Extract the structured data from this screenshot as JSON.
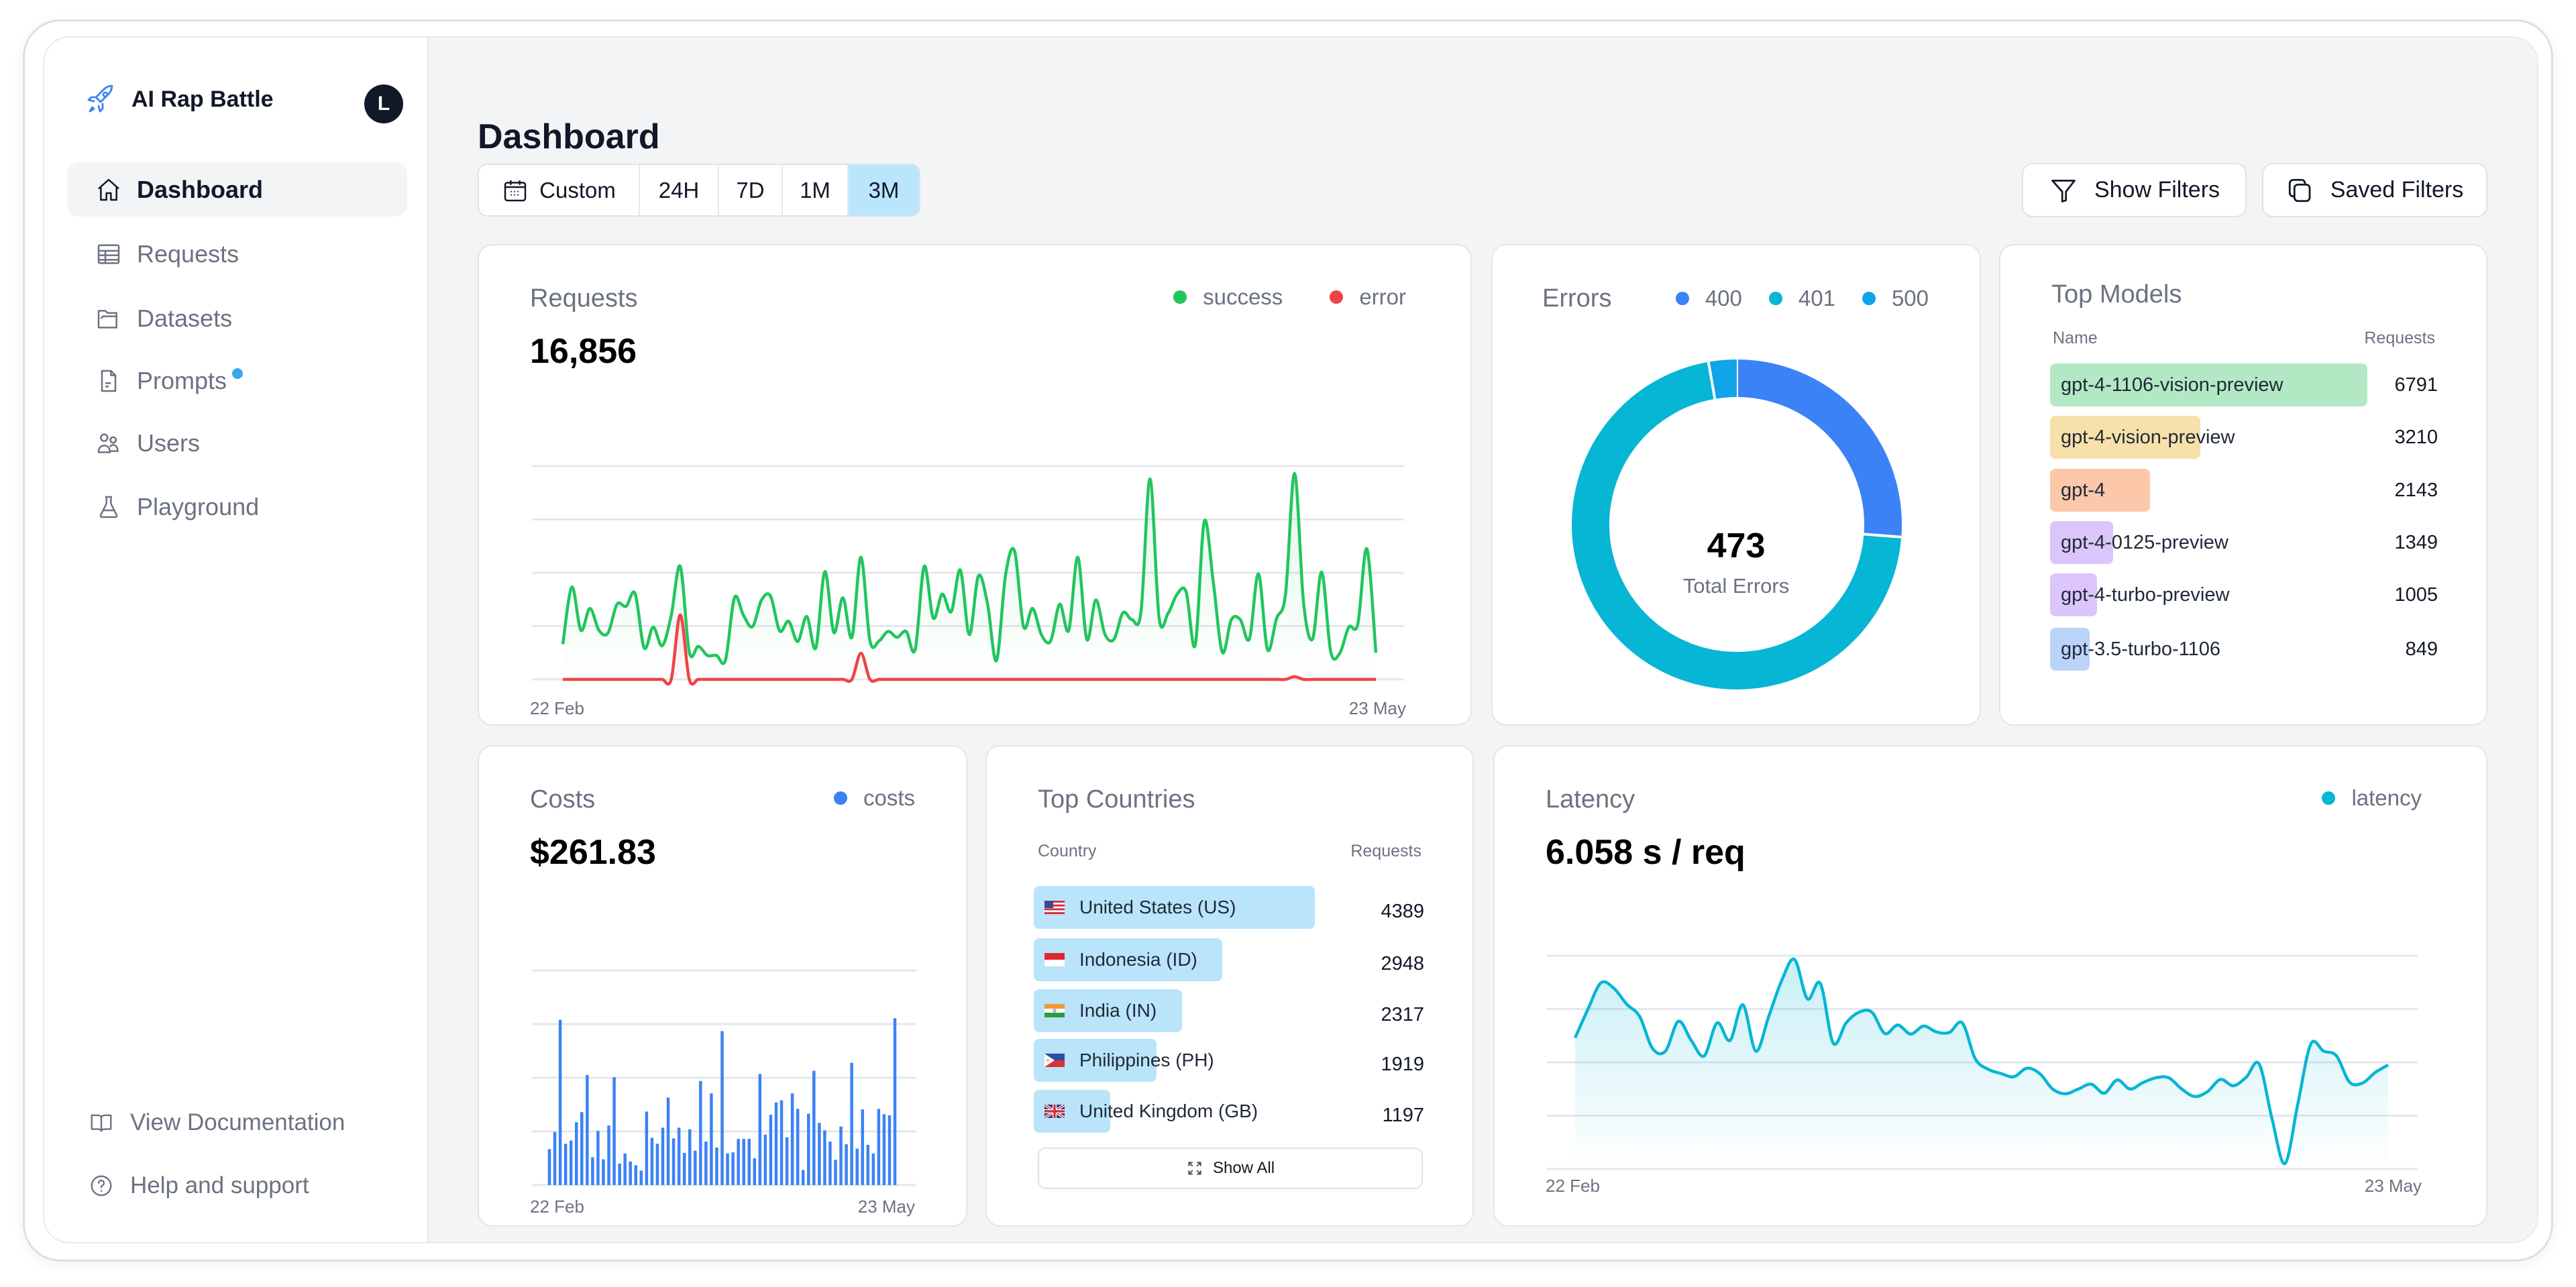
{
  "app": {
    "name": "AI Rap Battle",
    "avatar": "L",
    "logo_icon": "rocket-icon"
  },
  "sidebar": {
    "items": [
      {
        "label": "Dashboard",
        "icon": "home-icon",
        "active": true
      },
      {
        "label": "Requests",
        "icon": "table-icon"
      },
      {
        "label": "Datasets",
        "icon": "folder-icon"
      },
      {
        "label": "Prompts",
        "icon": "document-icon",
        "badge": true
      },
      {
        "label": "Users",
        "icon": "users-icon"
      },
      {
        "label": "Playground",
        "icon": "flask-icon"
      }
    ],
    "footer": [
      {
        "label": "View Documentation",
        "icon": "book-icon"
      },
      {
        "label": "Help and support",
        "icon": "help-circle-icon"
      }
    ]
  },
  "header": {
    "title": "Dashboard",
    "ranges": [
      "Custom",
      "24H",
      "7D",
      "1M",
      "3M"
    ],
    "active_range": "3M",
    "show_filters": "Show Filters",
    "saved_filters": "Saved Filters"
  },
  "colors": {
    "success": "#22c55e",
    "error": "#ef4444",
    "e400": "#3b82f6",
    "e401": "#06b6d4",
    "e500": "#0ea5e9",
    "costs": "#3b82f6",
    "latency": "#06b6d4",
    "country_bar": "#b9e4fa",
    "active_range": "#bae6fd"
  },
  "chart_data": [
    {
      "type": "line",
      "title": "Requests",
      "value": "16,856",
      "x_labels": [
        "22 Feb",
        "23 May"
      ],
      "ylim": [
        0,
        400
      ],
      "grid": true,
      "legend_position": "top-right",
      "series": [
        {
          "name": "success",
          "color": "#22c55e",
          "values": [
            66,
            173,
            92,
            133,
            92,
            87,
            141,
            137,
            161,
            59,
            98,
            63,
            120,
            212,
            51,
            62,
            45,
            45,
            36,
            153,
            120,
            99,
            149,
            156,
            91,
            109,
            71,
            118,
            59,
            202,
            88,
            153,
            79,
            229,
            72,
            72,
            90,
            79,
            90,
            56,
            212,
            115,
            160,
            127,
            205,
            84,
            194,
            143,
            35,
            195,
            241,
            99,
            133,
            83,
            72,
            141,
            92,
            229,
            75,
            149,
            85,
            75,
            125,
            112,
            127,
            376,
            116,
            124,
            160,
            164,
            64,
            296,
            183,
            51,
            112,
            112,
            76,
            198,
            56,
            114,
            160,
            386,
            143,
            76,
            201,
            52,
            49,
            98,
            104,
            245,
            50
          ]
        },
        {
          "name": "error",
          "color": "#ef4444",
          "values": [
            0,
            0,
            0,
            0,
            0,
            0,
            0,
            0,
            0,
            0,
            0,
            0,
            0,
            121,
            0,
            0,
            0,
            0,
            0,
            0,
            0,
            0,
            0,
            0,
            0,
            0,
            0,
            0,
            0,
            0,
            0,
            0,
            0,
            49,
            0,
            0,
            0,
            0,
            0,
            0,
            0,
            0,
            0,
            0,
            0,
            0,
            0,
            0,
            0,
            0,
            0,
            0,
            0,
            0,
            0,
            0,
            0,
            0,
            0,
            0,
            0,
            0,
            0,
            0,
            0,
            0,
            0,
            0,
            0,
            0,
            0,
            0,
            0,
            0,
            0,
            0,
            0,
            0,
            0,
            0,
            0,
            5,
            0,
            0,
            0,
            0,
            0,
            0,
            0,
            0,
            0
          ]
        }
      ]
    },
    {
      "type": "pie",
      "title": "Errors",
      "value": "473",
      "center_label": "Total Errors",
      "legend_position": "top-right",
      "slices": [
        {
          "name": "400",
          "value": 124,
          "color": "#3b82f6"
        },
        {
          "name": "401",
          "value": 336,
          "color": "#06b6d4"
        },
        {
          "name": "500",
          "value": 13,
          "color": "#0ea5e9"
        }
      ]
    },
    {
      "type": "bar",
      "title": "Top Models",
      "col_name": "Name",
      "col_value": "Requests",
      "rows": [
        {
          "name": "gpt-4-1106-vision-preview",
          "value": 6791,
          "color": "#b3e8c4"
        },
        {
          "name": "gpt-4-vision-preview",
          "value": 3210,
          "color": "#f7e0a9"
        },
        {
          "name": "gpt-4",
          "value": 2143,
          "color": "#fcc8a9"
        },
        {
          "name": "gpt-4-0125-preview",
          "value": 1349,
          "color": "#dcc5fa"
        },
        {
          "name": "gpt-4-turbo-preview",
          "value": 1005,
          "color": "#dcc5fa"
        },
        {
          "name": "gpt-3.5-turbo-1106",
          "value": 849,
          "color": "#bcd3f9"
        }
      ]
    },
    {
      "type": "bar",
      "title": "Costs",
      "value": "$261.83",
      "x_labels": [
        "22 Feb",
        "23 May"
      ],
      "ylim": [
        0,
        400
      ],
      "grid": true,
      "legend_position": "top-right",
      "series": [
        {
          "name": "costs",
          "color": "#3b82f6",
          "values": [
            67,
            99,
            308,
            77,
            83,
            117,
            136,
            205,
            52,
            101,
            48,
            111,
            201,
            40,
            59,
            44,
            37,
            27,
            137,
            88,
            77,
            107,
            163,
            87,
            107,
            60,
            104,
            64,
            194,
            81,
            171,
            70,
            287,
            59,
            61,
            86,
            86,
            86,
            50,
            207,
            94,
            131,
            154,
            158,
            89,
            171,
            142,
            28,
            133,
            213,
            116,
            102,
            81,
            47,
            109,
            76,
            228,
            68,
            141,
            75,
            59,
            142,
            132,
            130,
            311
          ]
        }
      ]
    },
    {
      "type": "bar",
      "title": "Top Countries",
      "col_name": "Country",
      "col_value": "Requests",
      "show_all": "Show All",
      "rows": [
        {
          "name": "United States (US)",
          "code": "US",
          "value": 4389
        },
        {
          "name": "Indonesia (ID)",
          "code": "ID",
          "value": 2948
        },
        {
          "name": "India (IN)",
          "code": "IN",
          "value": 2317
        },
        {
          "name": "Philippines (PH)",
          "code": "PH",
          "value": 1919
        },
        {
          "name": "United Kingdom (GB)",
          "code": "GB",
          "value": 1197
        }
      ]
    },
    {
      "type": "area",
      "title": "Latency",
      "value": "6.058 s / req",
      "x_labels": [
        "22 Feb",
        "23 May"
      ],
      "ylim": [
        0,
        400
      ],
      "grid": true,
      "legend_position": "top-right",
      "series": [
        {
          "name": "latency",
          "color": "#06b6d4",
          "values": [
            246,
            300,
            349,
            339,
            309,
            286,
            226,
            221,
            277,
            241,
            212,
            274,
            241,
            308,
            221,
            286,
            353,
            393,
            319,
            348,
            236,
            274,
            294,
            294,
            254,
            270,
            253,
            268,
            257,
            256,
            274,
            207,
            187,
            179,
            173,
            189,
            179,
            150,
            141,
            150,
            159,
            142,
            167,
            150,
            162,
            171,
            171,
            150,
            136,
            145,
            168,
            156,
            172,
            197,
            94,
            10,
            122,
            234,
            221,
            212,
            163,
            161,
            181,
            195
          ]
        }
      ]
    }
  ]
}
